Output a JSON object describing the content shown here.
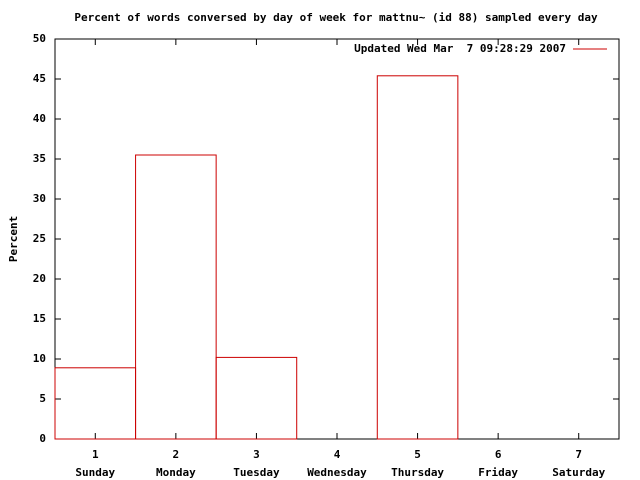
{
  "chart_data": {
    "type": "bar",
    "title": "Percent of words conversed by day of week for mattnu~ (id 88) sampled every day",
    "y_label": "Percent",
    "x": [
      1,
      2,
      3,
      4,
      5,
      6,
      7
    ],
    "categories": [
      "Sunday",
      "Monday",
      "Tuesday",
      "Wednesday",
      "Thursday",
      "Friday",
      "Saturday"
    ],
    "series": [
      {
        "name": "Updated Wed Mar  7 09:28:29 2007",
        "color": "#cc0000",
        "values": [
          8.9,
          35.5,
          10.2,
          0,
          45.4,
          0,
          0
        ]
      }
    ],
    "xlim": [
      0.5,
      7.5
    ],
    "xticks": [
      1,
      2,
      3,
      4,
      5,
      6,
      7
    ],
    "ylim": [
      0,
      50
    ],
    "yticks": [
      0,
      5,
      10,
      15,
      20,
      25,
      30,
      35,
      40,
      45,
      50
    ],
    "legend": "top-right"
  }
}
